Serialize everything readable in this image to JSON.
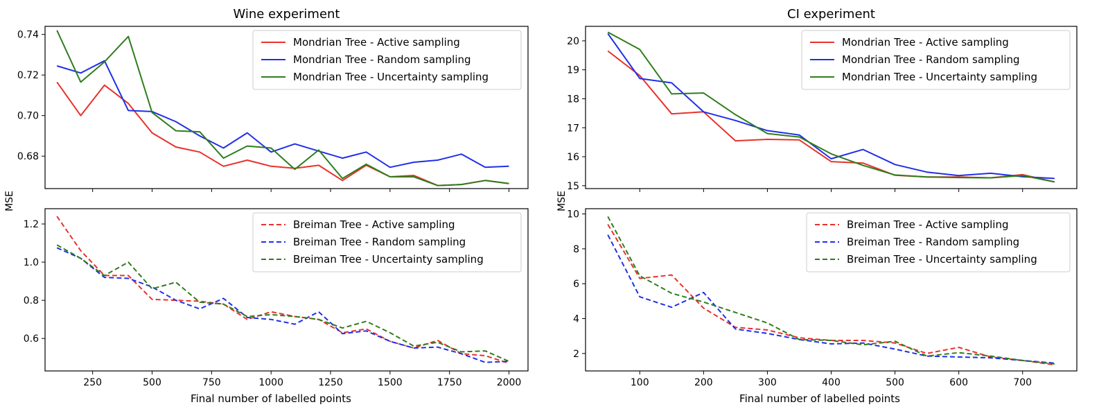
{
  "figure": {
    "ylabel": "MSE",
    "xlabel": "Final number of labelled points",
    "colors": {
      "active": "#e8312a",
      "random": "#1f2fe8",
      "uncertainty": "#2e7d1c"
    }
  },
  "chart_data": [
    {
      "type": "line",
      "panel": "wine-top",
      "title": "Wine experiment",
      "xlabel": "",
      "ylabel": "",
      "xlim": [
        50,
        2080
      ],
      "ylim": [
        0.664,
        0.744
      ],
      "xticks": [],
      "xtick_labels": [],
      "yticks": [
        0.68,
        0.7,
        0.72,
        0.74
      ],
      "ytick_labels": [
        "0.68",
        "0.70",
        "0.72",
        "0.74"
      ],
      "legend": "top-right",
      "dashed": false,
      "x": [
        100,
        200,
        300,
        400,
        500,
        600,
        700,
        800,
        900,
        1000,
        1100,
        1200,
        1300,
        1400,
        1500,
        1600,
        1700,
        1800,
        1900,
        2000
      ],
      "series": [
        {
          "name": "Mondrian Tree - Active sampling",
          "color_key": "active",
          "values": [
            0.7165,
            0.7,
            0.715,
            0.706,
            0.6915,
            0.6845,
            0.682,
            0.675,
            0.678,
            0.675,
            0.674,
            0.6755,
            0.668,
            0.6755,
            0.6698,
            0.6705,
            0.6655,
            0.666,
            0.668,
            0.6665
          ]
        },
        {
          "name": "Mondrian Tree - Random sampling",
          "color_key": "random",
          "values": [
            0.7245,
            0.721,
            0.727,
            0.7025,
            0.702,
            0.697,
            0.69,
            0.684,
            0.6915,
            0.682,
            0.686,
            0.6825,
            0.679,
            0.682,
            0.6745,
            0.677,
            0.678,
            0.681,
            0.6745,
            0.675
          ]
        },
        {
          "name": "Mondrian Tree - Uncertainty sampling",
          "color_key": "uncertainty",
          "values": [
            0.742,
            0.7165,
            0.7265,
            0.739,
            0.7015,
            0.6925,
            0.692,
            0.679,
            0.685,
            0.684,
            0.6735,
            0.683,
            0.669,
            0.676,
            0.6698,
            0.6698,
            0.6655,
            0.666,
            0.668,
            0.6665
          ]
        }
      ]
    },
    {
      "type": "line",
      "panel": "ci-top",
      "title": "CI experiment",
      "xlabel": "",
      "ylabel": "",
      "xlim": [
        15,
        785
      ],
      "ylim": [
        14.9,
        20.5
      ],
      "xticks": [],
      "xtick_labels": [],
      "yticks": [
        15,
        16,
        17,
        18,
        19,
        20
      ],
      "ytick_labels": [
        "15",
        "16",
        "17",
        "18",
        "19",
        "20"
      ],
      "legend": "top-right",
      "dashed": false,
      "x": [
        50,
        100,
        150,
        200,
        250,
        300,
        350,
        400,
        450,
        500,
        550,
        600,
        650,
        700,
        750
      ],
      "series": [
        {
          "name": "Mondrian Tree - Active sampling",
          "color_key": "active",
          "values": [
            19.65,
            18.8,
            17.48,
            17.55,
            16.55,
            16.6,
            16.58,
            15.83,
            15.78,
            15.36,
            15.3,
            15.3,
            15.27,
            15.38,
            15.13
          ]
        },
        {
          "name": "Mondrian Tree - Random sampling",
          "color_key": "random",
          "values": [
            20.25,
            18.7,
            18.55,
            17.55,
            17.25,
            16.9,
            16.75,
            15.93,
            16.25,
            15.73,
            15.47,
            15.35,
            15.43,
            15.31,
            15.25
          ]
        },
        {
          "name": "Mondrian Tree - Uncertainty sampling",
          "color_key": "uncertainty",
          "values": [
            20.3,
            19.7,
            18.17,
            18.2,
            17.45,
            16.8,
            16.68,
            16.1,
            15.7,
            15.37,
            15.3,
            15.28,
            15.27,
            15.35,
            15.13
          ]
        }
      ]
    },
    {
      "type": "line",
      "panel": "wine-bottom",
      "title": "",
      "xlabel": "",
      "ylabel": "",
      "xlim": [
        50,
        2080
      ],
      "ylim": [
        0.43,
        1.28
      ],
      "xticks": [
        250,
        500,
        750,
        1000,
        1250,
        1500,
        1750,
        2000
      ],
      "xtick_labels": [
        "250",
        "500",
        "750",
        "1000",
        "1250",
        "1500",
        "1750",
        "2000"
      ],
      "yticks": [
        0.6,
        0.8,
        1.0,
        1.2
      ],
      "ytick_labels": [
        "0.6",
        "0.8",
        "1.0",
        "1.2"
      ],
      "legend": "top-right",
      "dashed": true,
      "x": [
        100,
        200,
        300,
        400,
        500,
        600,
        700,
        800,
        900,
        1000,
        1100,
        1200,
        1300,
        1400,
        1500,
        1600,
        1700,
        1800,
        1900,
        2000
      ],
      "series": [
        {
          "name": "Breiman Tree - Active sampling",
          "color_key": "active",
          "values": [
            1.24,
            1.06,
            0.93,
            0.93,
            0.805,
            0.8,
            0.795,
            0.78,
            0.7,
            0.74,
            0.715,
            0.7,
            0.63,
            0.65,
            0.585,
            0.55,
            0.59,
            0.52,
            0.51,
            0.47
          ]
        },
        {
          "name": "Breiman Tree - Random sampling",
          "color_key": "random",
          "values": [
            1.075,
            1.02,
            0.92,
            0.915,
            0.87,
            0.8,
            0.755,
            0.81,
            0.71,
            0.7,
            0.675,
            0.74,
            0.625,
            0.64,
            0.585,
            0.55,
            0.555,
            0.52,
            0.475,
            0.48
          ]
        },
        {
          "name": "Breiman Tree - Uncertainty sampling",
          "color_key": "uncertainty",
          "values": [
            1.09,
            1.02,
            0.93,
            1.0,
            0.86,
            0.895,
            0.79,
            0.78,
            0.715,
            0.725,
            0.715,
            0.7,
            0.655,
            0.69,
            0.63,
            0.56,
            0.58,
            0.53,
            0.535,
            0.48
          ]
        }
      ]
    },
    {
      "type": "line",
      "panel": "ci-bottom",
      "title": "",
      "xlabel": "",
      "ylabel": "",
      "xlim": [
        15,
        785
      ],
      "ylim": [
        1.0,
        10.3
      ],
      "xticks": [
        100,
        200,
        300,
        400,
        500,
        600,
        700
      ],
      "xtick_labels": [
        "100",
        "200",
        "300",
        "400",
        "500",
        "600",
        "700"
      ],
      "yticks": [
        2,
        4,
        6,
        8,
        10
      ],
      "ytick_labels": [
        "2",
        "4",
        "6",
        "8",
        "10"
      ],
      "legend": "top-right",
      "dashed": true,
      "x": [
        50,
        100,
        150,
        200,
        250,
        300,
        350,
        400,
        450,
        500,
        550,
        600,
        650,
        700,
        750
      ],
      "series": [
        {
          "name": "Breiman Tree - Active sampling",
          "color_key": "active",
          "values": [
            9.4,
            6.3,
            6.5,
            4.6,
            3.5,
            3.35,
            2.9,
            2.75,
            2.75,
            2.6,
            2.0,
            2.35,
            1.8,
            1.6,
            1.35
          ]
        },
        {
          "name": "Breiman Tree - Random sampling",
          "color_key": "random",
          "values": [
            8.8,
            5.25,
            4.65,
            5.5,
            3.4,
            3.15,
            2.8,
            2.55,
            2.6,
            2.25,
            1.85,
            1.8,
            1.75,
            1.6,
            1.45
          ]
        },
        {
          "name": "Breiman Tree - Uncertainty sampling",
          "color_key": "uncertainty",
          "values": [
            9.85,
            6.45,
            5.45,
            4.95,
            4.35,
            3.75,
            2.8,
            2.75,
            2.5,
            2.7,
            1.85,
            2.05,
            1.85,
            1.6,
            1.4
          ]
        }
      ]
    }
  ]
}
